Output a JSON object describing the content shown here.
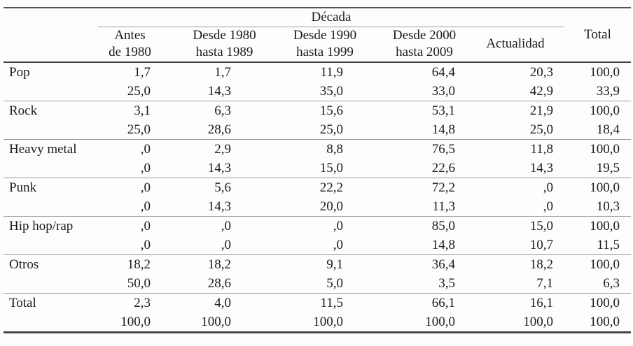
{
  "table": {
    "spanner": "Década",
    "total_header": "Total",
    "columns": [
      {
        "line1": "Antes",
        "line2": "de 1980"
      },
      {
        "line1": "Desde 1980",
        "line2": "hasta 1989"
      },
      {
        "line1": "Desde 1990",
        "line2": "hasta 1999"
      },
      {
        "line1": "Desde 2000",
        "line2": "hasta 2009"
      },
      {
        "line1": "Actualidad",
        "line2": ""
      }
    ],
    "rows": [
      {
        "label": "Pop",
        "line1": [
          "1,7",
          "1,7",
          "11,9",
          "64,4",
          "20,3",
          "100,0"
        ],
        "line2": [
          "25,0",
          "14,3",
          "35,0",
          "33,0",
          "42,9",
          "33,9"
        ]
      },
      {
        "label": "Rock",
        "line1": [
          "3,1",
          "6,3",
          "15,6",
          "53,1",
          "21,9",
          "100,0"
        ],
        "line2": [
          "25,0",
          "28,6",
          "25,0",
          "14,8",
          "25,0",
          "18,4"
        ]
      },
      {
        "label": "Heavy metal",
        "line1": [
          ",0",
          "2,9",
          "8,8",
          "76,5",
          "11,8",
          "100,0"
        ],
        "line2": [
          ",0",
          "14,3",
          "15,0",
          "22,6",
          "14,3",
          "19,5"
        ]
      },
      {
        "label": "Punk",
        "line1": [
          ",0",
          "5,6",
          "22,2",
          "72,2",
          ",0",
          "100,0"
        ],
        "line2": [
          ",0",
          "14,3",
          "20,0",
          "11,3",
          ",0",
          "10,3"
        ]
      },
      {
        "label": "Hip hop/rap",
        "line1": [
          ",0",
          ",0",
          ",0",
          "85,0",
          "15,0",
          "100,0"
        ],
        "line2": [
          ",0",
          ",0",
          ",0",
          "14,8",
          "10,7",
          "11,5"
        ]
      },
      {
        "label": "Otros",
        "line1": [
          "18,2",
          "18,2",
          "9,1",
          "36,4",
          "18,2",
          "100,0"
        ],
        "line2": [
          "50,0",
          "28,6",
          "5,0",
          "3,5",
          "7,1",
          "6,3"
        ]
      },
      {
        "label": "Total",
        "line1": [
          "2,3",
          "4,0",
          "11,5",
          "66,1",
          "16,1",
          "100,0"
        ],
        "line2": [
          "100,0",
          "100,0",
          "100,0",
          "100,0",
          "100,0",
          "100,0"
        ]
      }
    ]
  }
}
